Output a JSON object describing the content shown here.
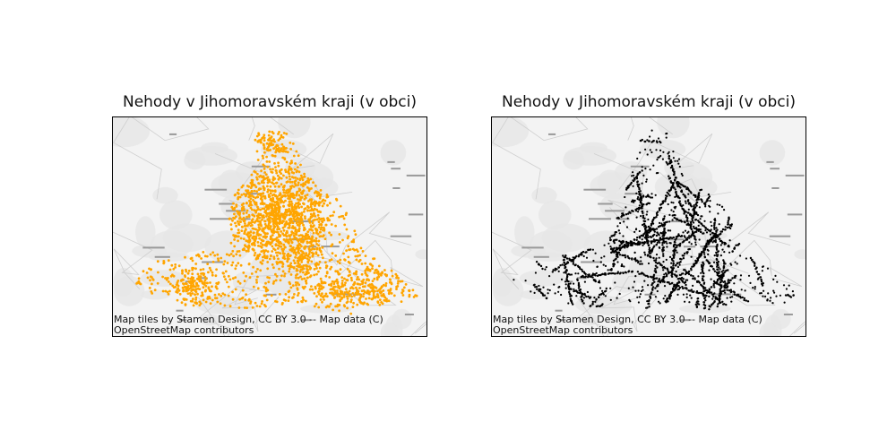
{
  "panels": [
    {
      "title": "Nehody v Jihomoravském kraji (v obci)",
      "dot_color": "#FFA500",
      "attribution": [
        "Map tiles by Stamen Design, CC BY 3.0 -- Map data (C)",
        "OpenStreetMap contributors"
      ]
    },
    {
      "title": "Nehody v Jihomoravském kraji (v obci)",
      "dot_color": "#000000",
      "attribution": [
        "Map tiles by Stamen Design, CC BY 3.0 -- Map data (C)",
        "OpenStreetMap contributors"
      ]
    }
  ],
  "colors": {
    "basemap": "#f3f3f3",
    "roads": "#cfcfcf",
    "green": "#e6e6e6"
  }
}
